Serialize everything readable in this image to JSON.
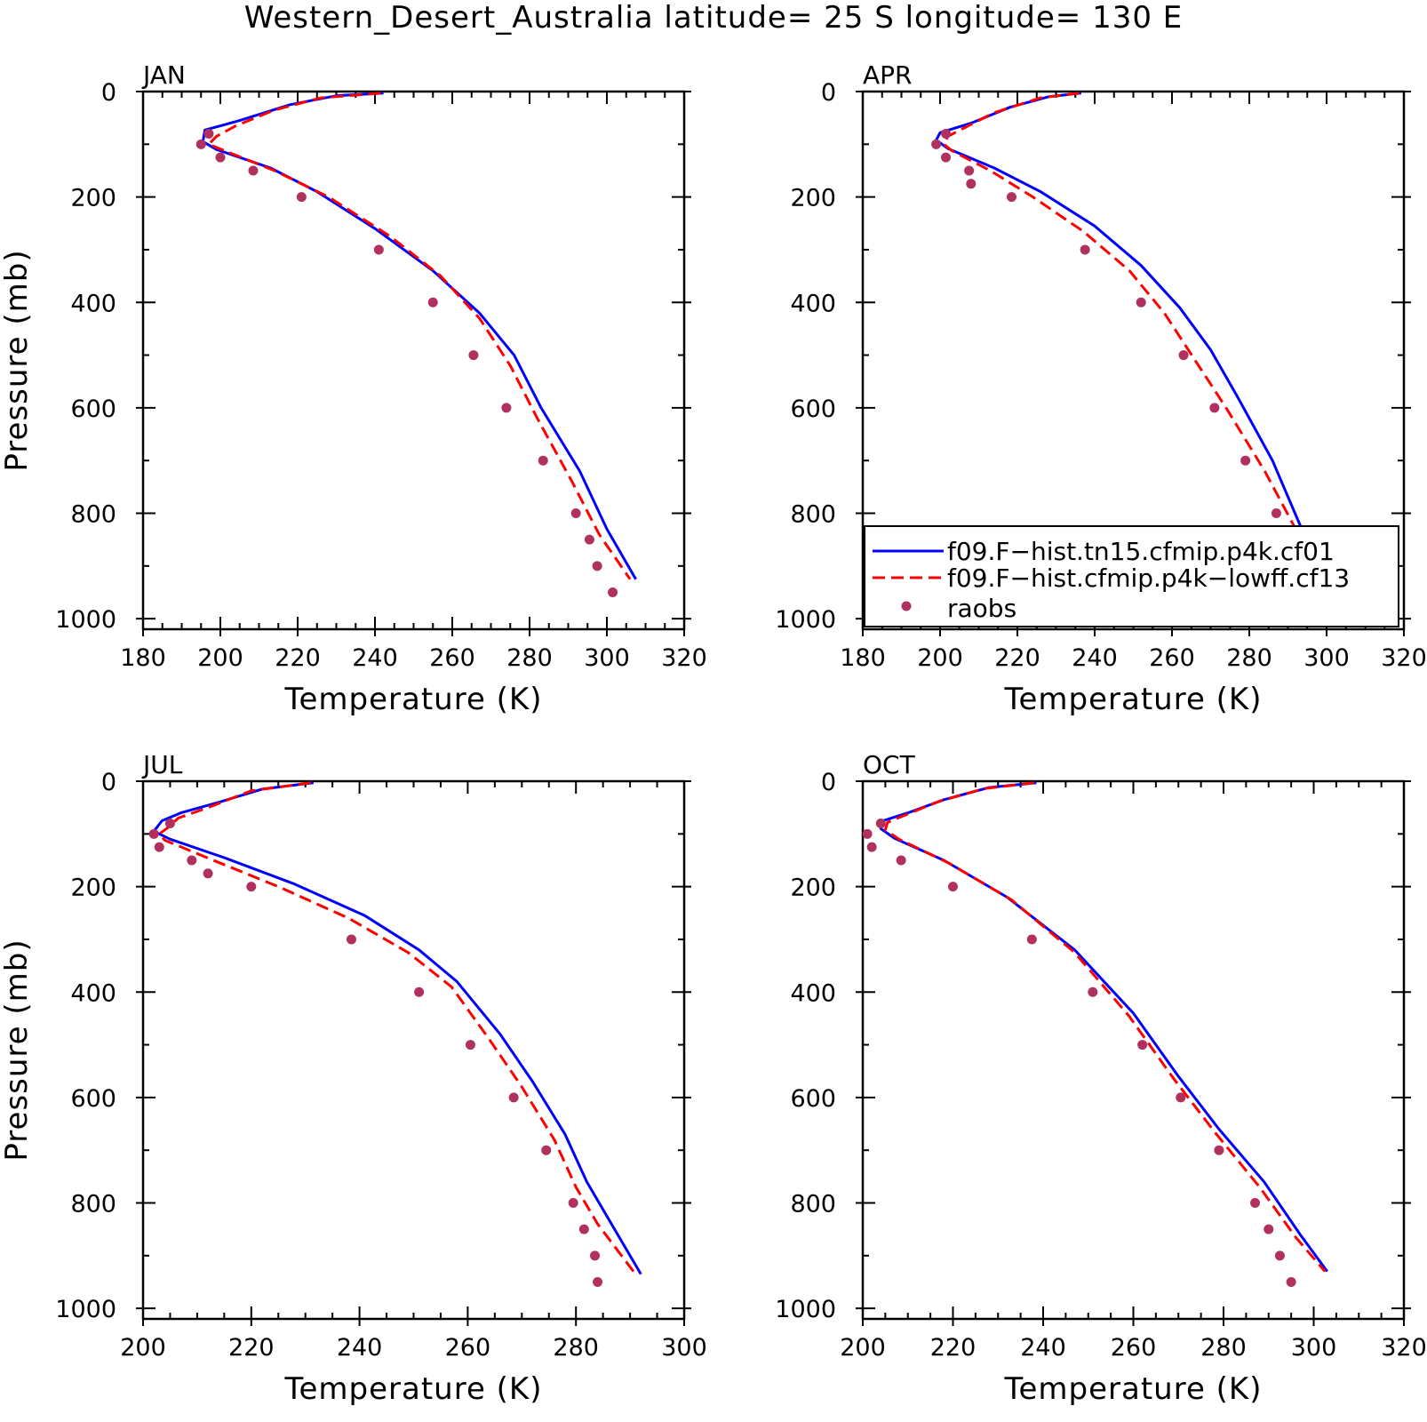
{
  "figure": {
    "title": "Western_Desert_Australia  latitude= 25 S longitude= 130 E"
  },
  "legend": {
    "entries": [
      {
        "label": "f09.F−hist.tn15.cfmip.p4k.cf01",
        "color": "#0000ff",
        "style": "solid"
      },
      {
        "label": "f09.F−hist.cfmip.p4k−lowff.cf13",
        "color": "#ff0000",
        "style": "dashed"
      },
      {
        "label": "raobs",
        "color": "#b03060",
        "style": "marker"
      }
    ],
    "placement": "inside APR panel, bottom"
  },
  "chart_data": [
    {
      "type": "line",
      "title": "JAN",
      "xlabel": "Temperature (K)",
      "ylabel": "Pressure (mb)",
      "xlim": [
        180,
        320
      ],
      "xticks": [
        "180",
        "200",
        "220",
        "240",
        "260",
        "280",
        "300",
        "320"
      ],
      "ylim": [
        0,
        1020
      ],
      "y_inverted": true,
      "yticks": [
        "0",
        "200",
        "400",
        "600",
        "800",
        "1000"
      ],
      "grid": false,
      "series": [
        {
          "name": "f09.F−hist.tn15.cfmip.p4k.cf01",
          "color": "#0000ff",
          "style": "solid",
          "x": [
            242.2,
            230,
            218,
            205,
            196,
            195.5,
            199,
            213,
            225,
            240,
            255,
            267,
            276,
            283,
            293,
            300,
            307.5
          ],
          "y": [
            3,
            8,
            25,
            55,
            73,
            95,
            110,
            145,
            190,
            260,
            340,
            420,
            500,
            600,
            720,
            830,
            925
          ]
        },
        {
          "name": "f09.F−hist.cfmip.p4k−lowff.cf13",
          "color": "#ff0000",
          "style": "dashed",
          "x": [
            241.5,
            226,
            214,
            204,
            199,
            197,
            201,
            214,
            228,
            244,
            257,
            267,
            275,
            282,
            291,
            298,
            306
          ],
          "y": [
            3,
            12,
            35,
            65,
            85,
            100,
            112,
            150,
            200,
            275,
            350,
            430,
            520,
            620,
            740,
            840,
            925
          ]
        },
        {
          "name": "raobs",
          "color": "#b03060",
          "style": "marker",
          "x": [
            197,
            195,
            200,
            208.5,
            221,
            241,
            255,
            265.5,
            274,
            283.5,
            292,
            295.5,
            297.5,
            301.5
          ],
          "y": [
            80,
            100,
            125,
            150,
            200,
            300,
            400,
            500,
            600,
            700,
            800,
            850,
            900,
            950
          ]
        }
      ]
    },
    {
      "type": "line",
      "title": "APR",
      "xlabel": "Temperature (K)",
      "ylabel": "",
      "xlim": [
        180,
        320
      ],
      "xticks": [
        "180",
        "200",
        "220",
        "240",
        "260",
        "280",
        "300",
        "320"
      ],
      "ylim": [
        0,
        1020
      ],
      "y_inverted": true,
      "yticks": [
        "0",
        "200",
        "400",
        "600",
        "800",
        "1000"
      ],
      "grid": false,
      "series": [
        {
          "name": "f09.F−hist.tn15.cfmip.p4k.cf01",
          "color": "#0000ff",
          "style": "solid",
          "x": [
            236.5,
            228,
            218,
            208,
            200,
            199,
            202,
            214,
            226,
            240,
            252,
            262,
            270,
            277,
            286,
            293,
            300.5
          ],
          "y": [
            3,
            10,
            30,
            60,
            78,
            92,
            108,
            145,
            190,
            255,
            330,
            410,
            490,
            580,
            700,
            820,
            930
          ]
        },
        {
          "name": "f09.F−hist.cfmip.p4k−lowff.cf13",
          "color": "#ff0000",
          "style": "dashed",
          "x": [
            236,
            226,
            214,
            206,
            202,
            201,
            203,
            213,
            224,
            237,
            249,
            258,
            266,
            274,
            284,
            292,
            299.5
          ],
          "y": [
            3,
            12,
            40,
            70,
            85,
            100,
            112,
            150,
            200,
            265,
            340,
            420,
            510,
            600,
            720,
            830,
            930
          ]
        },
        {
          "name": "raobs",
          "color": "#b03060",
          "style": "marker",
          "x": [
            201.5,
            199,
            201.5,
            207.5,
            208,
            218.5,
            237.5,
            252,
            263,
            271,
            279,
            287,
            291,
            293.5,
            294.5
          ],
          "y": [
            80,
            100,
            125,
            150,
            175,
            200,
            300,
            400,
            500,
            600,
            700,
            800,
            850,
            900,
            950
          ]
        }
      ]
    },
    {
      "type": "line",
      "title": "JUL",
      "xlabel": "Temperature (K)",
      "ylabel": "Pressure (mb)",
      "xlim": [
        200,
        300
      ],
      "xticks": [
        "200",
        "220",
        "240",
        "260",
        "280",
        "300"
      ],
      "ylim": [
        0,
        1020
      ],
      "y_inverted": true,
      "yticks": [
        "0",
        "200",
        "400",
        "600",
        "800",
        "1000"
      ],
      "grid": false,
      "series": [
        {
          "name": "f09.F−hist.tn15.cfmip.p4k.cf01",
          "color": "#0000ff",
          "style": "solid",
          "x": [
            231.5,
            222,
            214,
            207,
            203.5,
            202,
            205,
            215,
            228,
            241,
            251,
            258,
            266,
            272,
            278,
            282,
            286,
            292
          ],
          "y": [
            3,
            15,
            40,
            60,
            75,
            95,
            110,
            145,
            195,
            255,
            320,
            380,
            480,
            570,
            670,
            760,
            830,
            935
          ]
        },
        {
          "name": "f09.F−hist.cfmip.p4k−lowff.cf13",
          "color": "#ff0000",
          "style": "dashed",
          "x": [
            231,
            220,
            212,
            206.5,
            205,
            203,
            204,
            213,
            225,
            238,
            249,
            257,
            264,
            270,
            276,
            280,
            284,
            291
          ],
          "y": [
            3,
            18,
            50,
            70,
            85,
            100,
            112,
            150,
            200,
            260,
            325,
            390,
            490,
            580,
            680,
            770,
            840,
            935
          ]
        },
        {
          "name": "raobs",
          "color": "#b03060",
          "style": "marker",
          "x": [
            205,
            202,
            203,
            209,
            212,
            220,
            238.5,
            251,
            260.5,
            268.5,
            274.5,
            279.5,
            281.5,
            283.5,
            284
          ],
          "y": [
            80,
            100,
            125,
            150,
            175,
            200,
            300,
            400,
            500,
            600,
            700,
            800,
            850,
            900,
            950
          ]
        }
      ]
    },
    {
      "type": "line",
      "title": "OCT",
      "xlabel": "Temperature (K)",
      "ylabel": "",
      "xlim": [
        200,
        320
      ],
      "xticks": [
        "200",
        "220",
        "240",
        "260",
        "280",
        "300",
        "320"
      ],
      "ylim": [
        0,
        1020
      ],
      "y_inverted": true,
      "yticks": [
        "0",
        "200",
        "400",
        "600",
        "800",
        "1000"
      ],
      "grid": false,
      "series": [
        {
          "name": "f09.F−hist.tn15.cfmip.p4k.cf01",
          "color": "#0000ff",
          "style": "solid",
          "x": [
            238.5,
            228,
            218,
            210,
            204.5,
            204,
            207,
            218,
            232,
            247,
            260,
            270,
            279,
            289,
            297,
            303
          ],
          "y": [
            3,
            12,
            35,
            60,
            75,
            90,
            108,
            150,
            220,
            320,
            440,
            560,
            660,
            760,
            860,
            930
          ]
        },
        {
          "name": "f09.F−hist.cfmip.p4k−lowff.cf13",
          "color": "#ff0000",
          "style": "dashed",
          "x": [
            238,
            227,
            217,
            210,
            205.5,
            205,
            208,
            219,
            233,
            247,
            259,
            269,
            278,
            288,
            296,
            302.5
          ],
          "y": [
            3,
            14,
            38,
            62,
            78,
            92,
            110,
            155,
            225,
            325,
            445,
            565,
            665,
            770,
            865,
            930
          ]
        },
        {
          "name": "raobs",
          "color": "#b03060",
          "style": "marker",
          "x": [
            204,
            201,
            202,
            208.5,
            220,
            237.5,
            251,
            262,
            270.5,
            279,
            287,
            290,
            292.5,
            295
          ],
          "y": [
            80,
            100,
            125,
            150,
            200,
            300,
            400,
            500,
            600,
            700,
            800,
            850,
            900,
            950
          ]
        }
      ]
    }
  ]
}
